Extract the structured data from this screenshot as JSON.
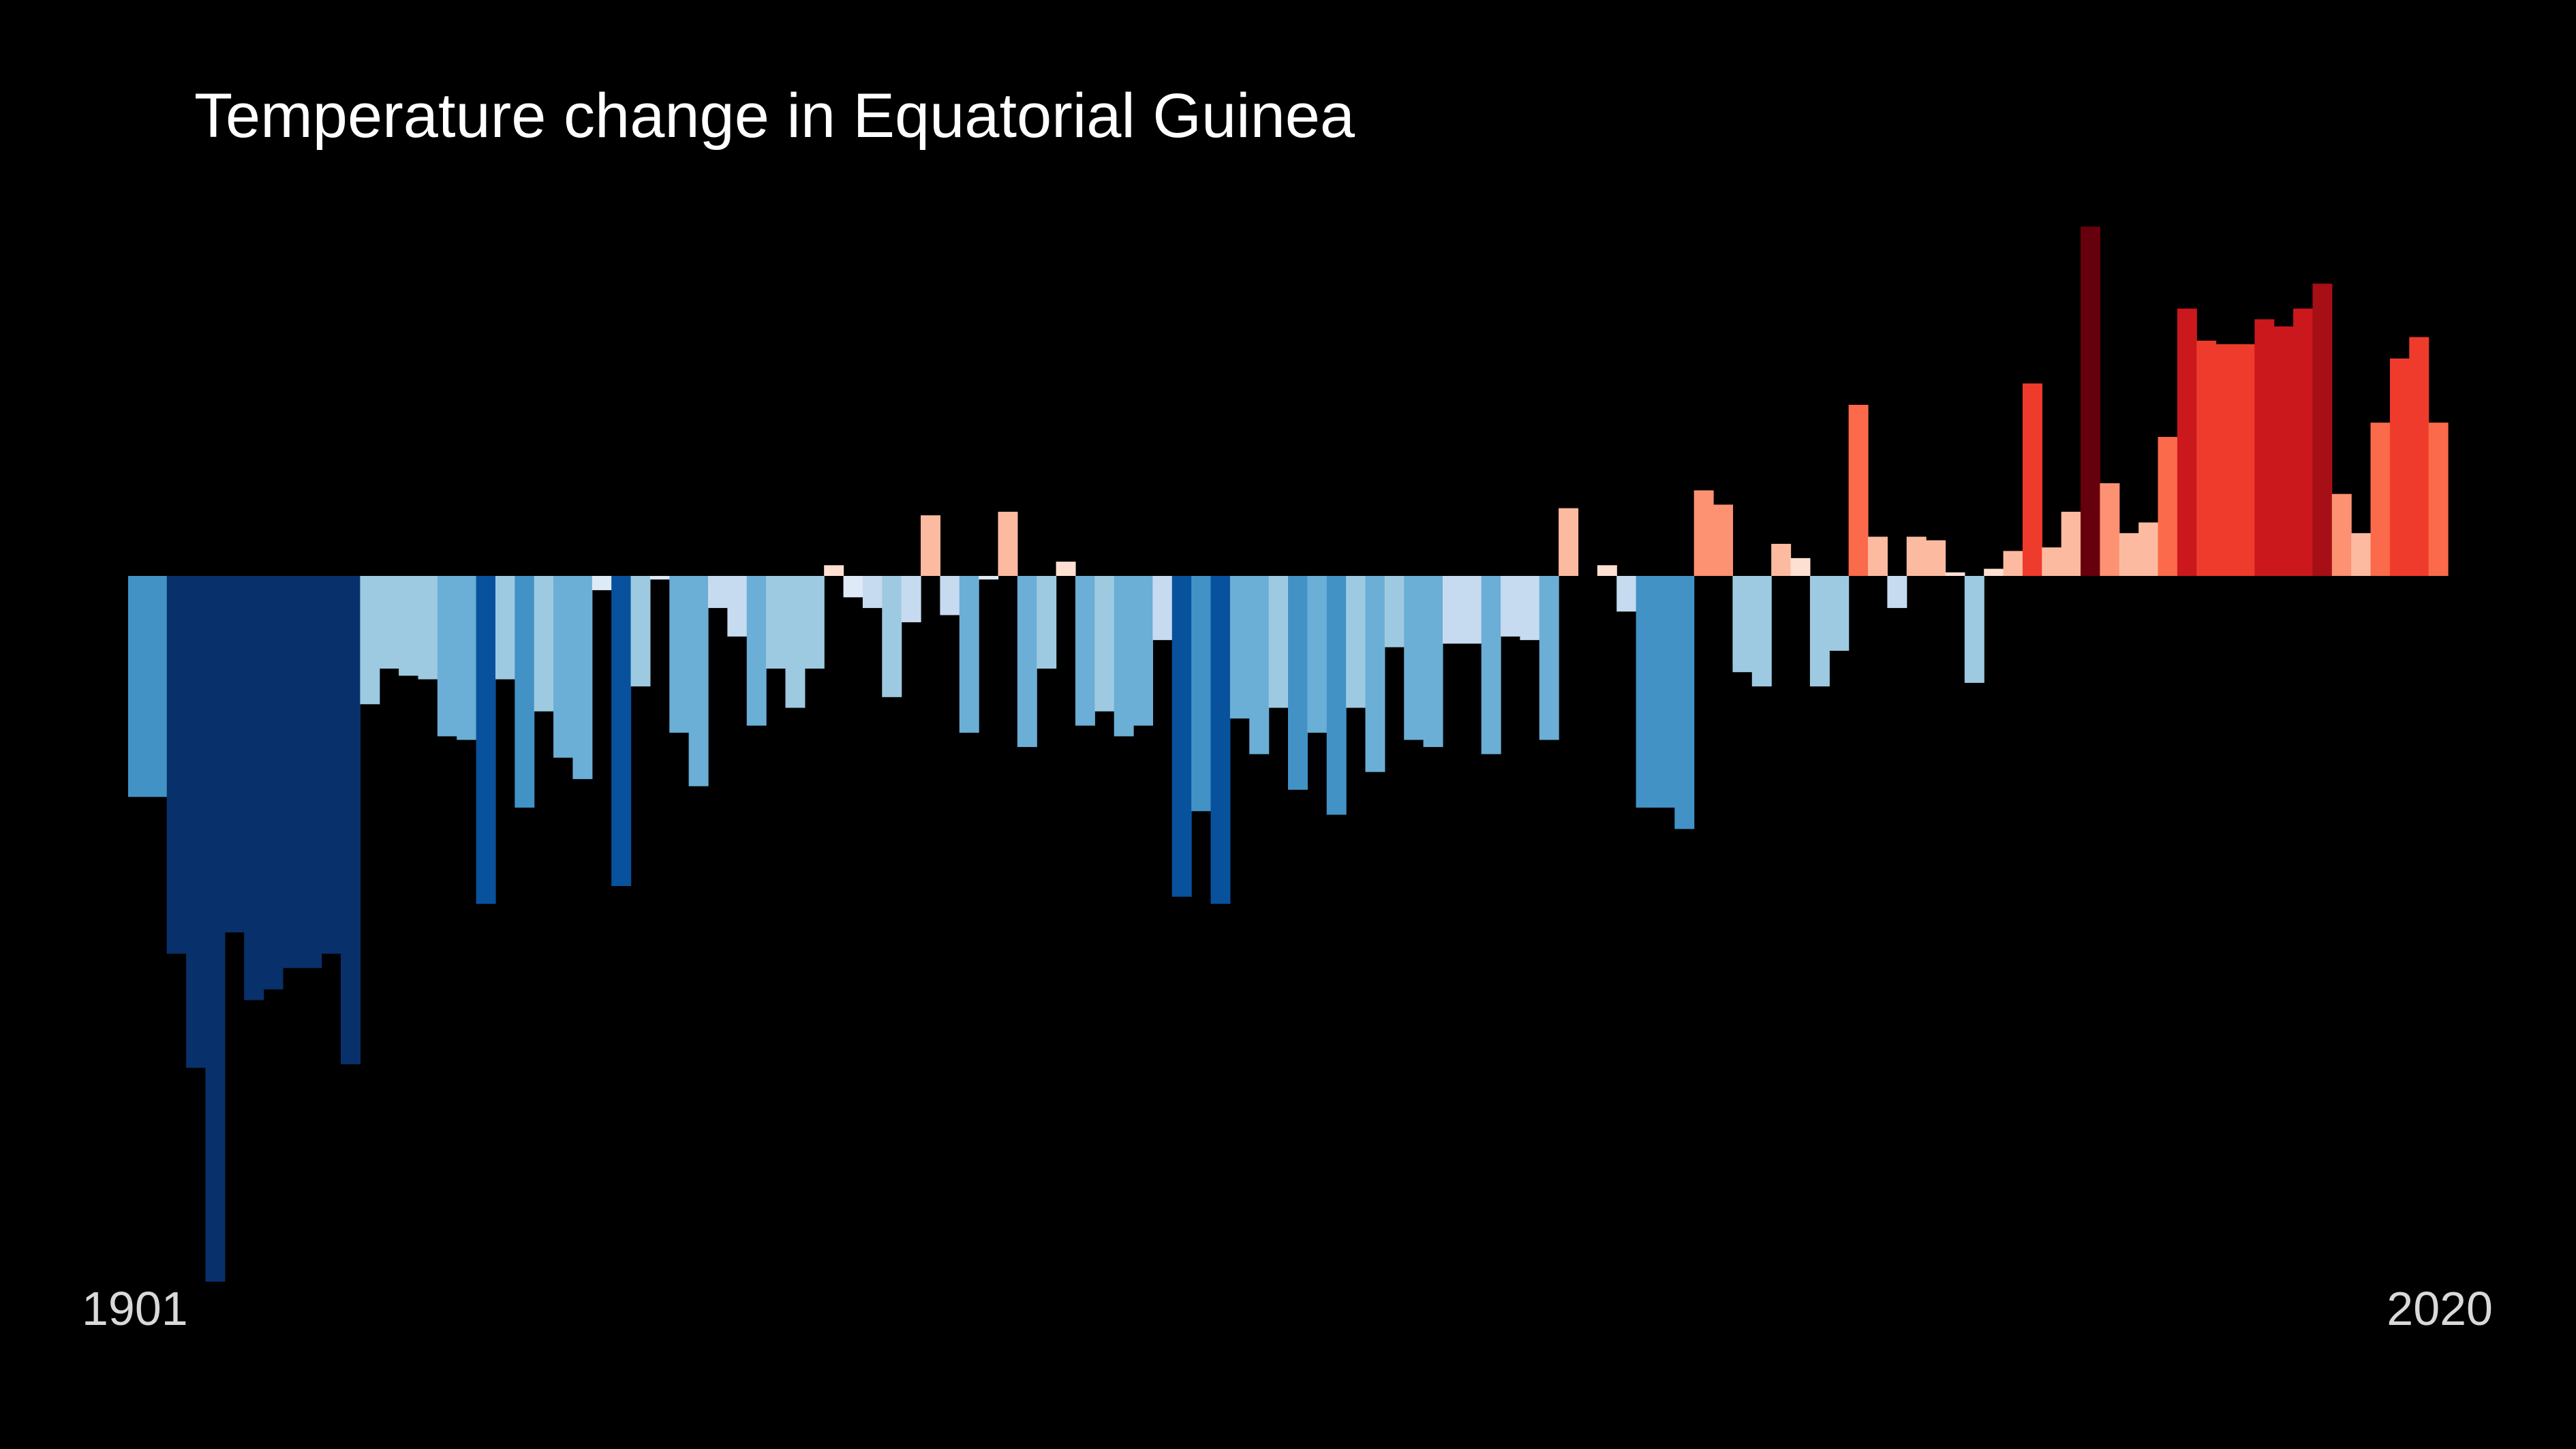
{
  "chart_data": {
    "type": "bar",
    "title": "Temperature change in Equatorial Guinea",
    "xlabel": "",
    "ylabel": "",
    "start_label": "1901",
    "end_label": "2020",
    "categories": [
      1901,
      1902,
      1903,
      1904,
      1905,
      1906,
      1907,
      1908,
      1909,
      1910,
      1911,
      1912,
      1913,
      1914,
      1915,
      1916,
      1917,
      1918,
      1919,
      1920,
      1921,
      1922,
      1923,
      1924,
      1925,
      1926,
      1927,
      1928,
      1929,
      1930,
      1931,
      1932,
      1933,
      1934,
      1935,
      1936,
      1937,
      1938,
      1939,
      1940,
      1941,
      1942,
      1943,
      1944,
      1945,
      1946,
      1947,
      1948,
      1949,
      1950,
      1951,
      1952,
      1953,
      1954,
      1955,
      1956,
      1957,
      1958,
      1959,
      1960,
      1961,
      1962,
      1963,
      1964,
      1965,
      1966,
      1967,
      1968,
      1969,
      1970,
      1971,
      1972,
      1973,
      1974,
      1975,
      1976,
      1977,
      1978,
      1979,
      1980,
      1981,
      1982,
      1983,
      1984,
      1985,
      1986,
      1987,
      1988,
      1989,
      1990,
      1991,
      1992,
      1993,
      1994,
      1995,
      1996,
      1997,
      1998,
      1999,
      2000,
      2001,
      2002,
      2003,
      2004,
      2005,
      2006,
      2007,
      2008,
      2009,
      2010,
      2011,
      2012,
      2013,
      2014,
      2015,
      2016,
      2017,
      2018,
      2019,
      2020
    ],
    "values": [
      0,
      -0.62,
      -1.06,
      -1.38,
      -1.98,
      -1.0,
      -1.19,
      -1.16,
      -1.1,
      -1.1,
      -1.06,
      -1.37,
      -0.36,
      -0.26,
      -0.28,
      -0.29,
      -0.45,
      -0.46,
      -0.92,
      -0.29,
      -0.65,
      -0.38,
      -0.51,
      -0.57,
      -0.04,
      -0.87,
      -0.31,
      -0.01,
      -0.44,
      -0.59,
      -0.09,
      -0.17,
      -0.42,
      -0.26,
      -0.37,
      -0.26,
      0.03,
      -0.06,
      -0.09,
      -0.34,
      -0.13,
      0.17,
      -0.11,
      -0.44,
      -0.01,
      0.18,
      -0.48,
      -0.26,
      0.04,
      -0.42,
      -0.38,
      -0.45,
      -0.42,
      -0.18,
      -0.9,
      -0.66,
      -0.92,
      -0.4,
      -0.5,
      -0.37,
      -0.6,
      -0.44,
      -0.67,
      -0.37,
      -0.55,
      -0.2,
      -0.46,
      -0.48,
      -0.19,
      -0.19,
      -0.5,
      -0.17,
      -0.18,
      -0.46,
      0.19,
      0,
      0.03,
      -0.1,
      -0.65,
      -0.65,
      -0.71,
      0.24,
      0.2,
      -0.27,
      -0.31,
      0.09,
      0.05,
      -0.31,
      -0.21,
      0.48,
      0.11,
      -0.09,
      0.11,
      0.1,
      0.01,
      -0.3,
      0.02,
      0.07,
      0.54,
      0.08,
      0.18,
      0.98,
      0.26,
      0.12,
      0.15,
      0.39,
      0.75,
      0.66,
      0.65,
      0.65,
      0.72,
      0.7,
      0.75,
      0.82,
      0.23,
      0.12,
      0.43,
      0.61,
      0.67,
      0.43
    ],
    "overrides": {
      "1901": -0.62,
      "1902": -0.62
    },
    "bar_colors": {
      "deep_blue": "#08306b",
      "strong_blue": "#08519c",
      "mid_blue": "#4292c6",
      "light_blue": "#6baed6",
      "pale_blue": "#9ecae1",
      "faint_blue": "#c6dbef",
      "near_white": "#deebf7",
      "near_white_red": "#fee0d2",
      "pale_red": "#fcbba1",
      "light_red": "#fc9272",
      "mid_red": "#fb6a4a",
      "red": "#ef3b2c",
      "strong_red": "#cb181d",
      "dark_red": "#a50f15",
      "deep_red": "#67000d"
    },
    "background": "#000000",
    "grid": false,
    "legend": "none"
  }
}
